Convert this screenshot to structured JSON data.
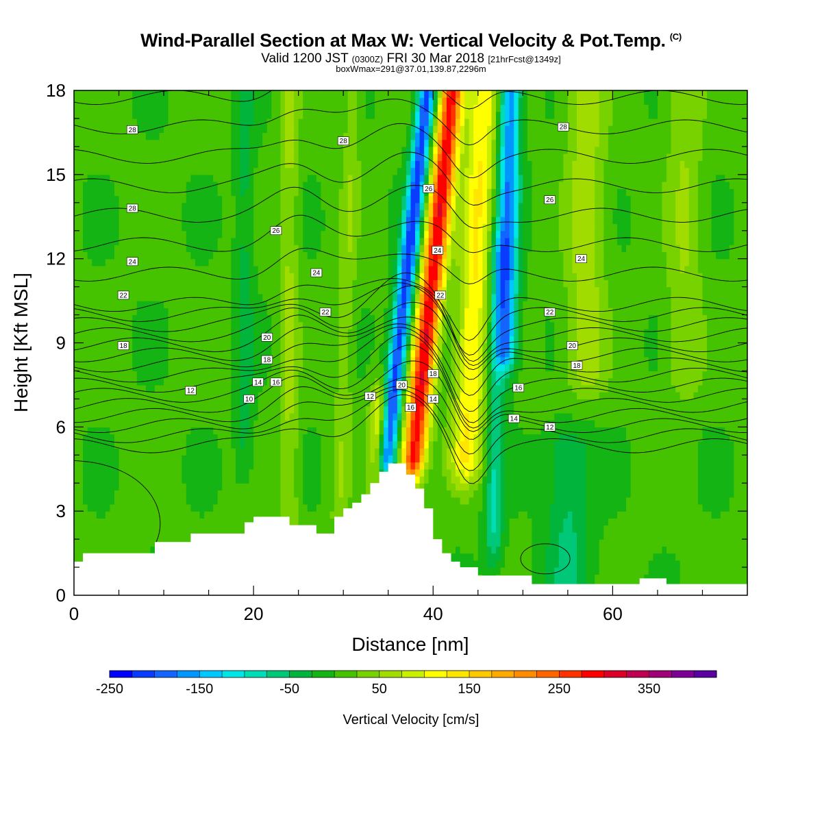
{
  "header": {
    "title": "Wind-Parallel Section at Max W: Vertical Velocity & Pot.Temp.",
    "title_mark": "(C)",
    "subtitle_main": "Valid 1200 JST",
    "subtitle_utc": "(0300Z)",
    "subtitle_date": "FRI 30 Mar 2018",
    "subtitle_fcst": "[21hrFcst@1349z]",
    "box_info": "boxWmax=291@37.01,139.87,2296m"
  },
  "chart_data": {
    "type": "heatmap",
    "xlabel": "Distance [nm]",
    "ylabel": "Height [Kft MSL]",
    "xlim": [
      0,
      75
    ],
    "ylim": [
      0,
      18
    ],
    "x_ticks": [
      0,
      20,
      40,
      60
    ],
    "y_ticks": [
      0,
      3,
      6,
      9,
      12,
      15,
      18
    ],
    "colorbar": {
      "title": "Vertical Velocity [cm/s]",
      "min": -250,
      "max": 425,
      "step": 25,
      "tick_values": [
        -250,
        -150,
        -50,
        50,
        150,
        250,
        350
      ],
      "tick_labels": [
        "-250",
        "-150",
        "-50",
        "50",
        "150",
        "250",
        "350"
      ],
      "colors": [
        "#0000ff",
        "#0a3cff",
        "#1464ff",
        "#0096ff",
        "#00c8ff",
        "#00e6e6",
        "#00dcb4",
        "#00c878",
        "#00b43c",
        "#14b414",
        "#46c300",
        "#78d200",
        "#a0dc00",
        "#c8f000",
        "#ffff00",
        "#ffe600",
        "#ffc800",
        "#ffaa00",
        "#ff8c00",
        "#ff6400",
        "#ff3200",
        "#ff0000",
        "#dc0028",
        "#be0050",
        "#a00078",
        "#7d0096",
        "#5a00a0"
      ]
    },
    "terrain_kft": {
      "x": [
        0,
        1,
        9,
        13,
        19,
        20,
        24,
        27,
        29,
        30,
        31,
        32,
        33,
        34,
        35,
        37,
        38,
        39,
        40,
        41,
        42,
        43,
        45,
        51,
        63,
        66,
        75
      ],
      "y": [
        1.2,
        1.5,
        1.9,
        2.2,
        2.6,
        2.8,
        2.5,
        2.2,
        2.8,
        3.1,
        3.3,
        3.6,
        4.0,
        4.4,
        4.7,
        4.3,
        3.8,
        3.1,
        2.0,
        1.5,
        1.2,
        1.0,
        0.7,
        0.4,
        0.6,
        0.4,
        0.3
      ]
    },
    "velocity_features": [
      {
        "x": 38.5,
        "z_lo": 5.0,
        "z_hi": 18.0,
        "slope": 0.33,
        "width": 1.3,
        "value": 291
      },
      {
        "x": 44.0,
        "z_lo": 5.0,
        "z_hi": 18.0,
        "slope": 0.15,
        "width": 1.8,
        "value": 120
      },
      {
        "x": 35.5,
        "z_lo": 5.0,
        "z_hi": 18.0,
        "slope": 0.35,
        "width": 1.0,
        "value": -220
      },
      {
        "x": 48.0,
        "z_lo": 9.0,
        "z_hi": 18.0,
        "slope": 0.05,
        "width": 1.2,
        "value": -180
      },
      {
        "x": 47.0,
        "z_lo": 2.0,
        "z_hi": 12.0,
        "slope": 0.05,
        "width": 1.0,
        "value": -80
      },
      {
        "x": 24.0,
        "z_lo": 1.5,
        "z_hi": 18.0,
        "slope": 0.0,
        "width": 1.0,
        "value": 50
      },
      {
        "x": 30.0,
        "z_lo": 3.0,
        "z_hi": 18.0,
        "slope": 0.1,
        "width": 1.0,
        "value": 40
      },
      {
        "x": 34.0,
        "z_lo": 4.2,
        "z_hi": 6.5,
        "slope": 0.0,
        "width": 1.0,
        "value": 110
      },
      {
        "x": 57.0,
        "z_lo": 8.0,
        "z_hi": 18.0,
        "slope": 0.0,
        "width": 2.2,
        "value": 60
      },
      {
        "x": 68.0,
        "z_lo": 8.0,
        "z_hi": 18.0,
        "slope": 0.0,
        "width": 2.0,
        "value": 45
      },
      {
        "x": 55.0,
        "z_lo": 0.5,
        "z_hi": 5.0,
        "slope": 0.0,
        "width": 2.5,
        "value": -60
      },
      {
        "x": 19.0,
        "z_lo": 5.0,
        "z_hi": 18.0,
        "slope": 0.0,
        "width": 1.0,
        "value": -40
      }
    ],
    "theta_levels": [
      10,
      12,
      14,
      16,
      18,
      20,
      22,
      24,
      26,
      28
    ],
    "contour_labels": [
      {
        "x": 6.5,
        "y": 16.6,
        "text": "28"
      },
      {
        "x": 30,
        "y": 16.2,
        "text": "28"
      },
      {
        "x": 54.5,
        "y": 16.7,
        "text": "28"
      },
      {
        "x": 6.5,
        "y": 13.8,
        "text": "28"
      },
      {
        "x": 22.5,
        "y": 13.0,
        "text": "26"
      },
      {
        "x": 39.5,
        "y": 14.5,
        "text": "26"
      },
      {
        "x": 53,
        "y": 14.1,
        "text": "26"
      },
      {
        "x": 6.5,
        "y": 11.9,
        "text": "24"
      },
      {
        "x": 27,
        "y": 11.5,
        "text": "24"
      },
      {
        "x": 40.5,
        "y": 12.3,
        "text": "24"
      },
      {
        "x": 56.5,
        "y": 12.0,
        "text": "24"
      },
      {
        "x": 5.5,
        "y": 10.7,
        "text": "22"
      },
      {
        "x": 28,
        "y": 10.1,
        "text": "22"
      },
      {
        "x": 40.8,
        "y": 10.7,
        "text": "22"
      },
      {
        "x": 53,
        "y": 10.1,
        "text": "22"
      },
      {
        "x": 5.5,
        "y": 8.9,
        "text": "18"
      },
      {
        "x": 21.5,
        "y": 9.2,
        "text": "20"
      },
      {
        "x": 55.5,
        "y": 8.9,
        "text": "20"
      },
      {
        "x": 21.5,
        "y": 8.4,
        "text": "18"
      },
      {
        "x": 56,
        "y": 8.2,
        "text": "18"
      },
      {
        "x": 20.5,
        "y": 7.6,
        "text": "14"
      },
      {
        "x": 22.5,
        "y": 7.6,
        "text": "16"
      },
      {
        "x": 13,
        "y": 7.3,
        "text": "12"
      },
      {
        "x": 19.5,
        "y": 7.0,
        "text": "10"
      },
      {
        "x": 33,
        "y": 7.1,
        "text": "12"
      },
      {
        "x": 36.5,
        "y": 7.5,
        "text": "20"
      },
      {
        "x": 40,
        "y": 7.9,
        "text": "18"
      },
      {
        "x": 37.5,
        "y": 6.7,
        "text": "16"
      },
      {
        "x": 40,
        "y": 7.0,
        "text": "14"
      },
      {
        "x": 49.5,
        "y": 7.4,
        "text": "16"
      },
      {
        "x": 49,
        "y": 6.3,
        "text": "14"
      },
      {
        "x": 53,
        "y": 6.0,
        "text": "12"
      }
    ]
  }
}
